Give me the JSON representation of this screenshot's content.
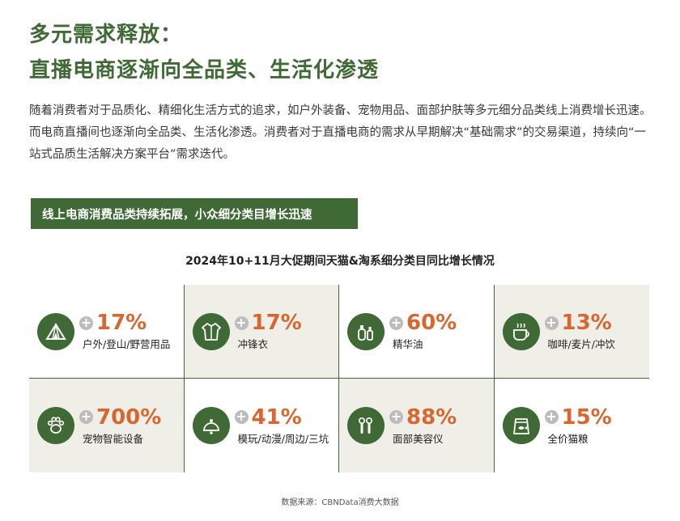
{
  "heading": {
    "line1": "多元需求释放：",
    "line2": "直播电商逐渐向全品类、生活化渗透"
  },
  "intro": "随着消费者对于品质化、精细化生活方式的追求，如户外装备、宠物用品、面部护肤等多元细分品类线上消费增长迅速。而电商直播间也逐渐向全品类、生活化渗透。消费者对于直播电商的需求从早期解决“基础需求”的交易渠道，持续向“一站式品质生活解决方案平台”需求迭代。",
  "banner": "线上电商消费品类持续拓展，小众细分类目增长迅速",
  "subtitle": "2024年10+11月大促期间天猫&淘系细分类目同比增长情况",
  "colors": {
    "green": "#3f6a35",
    "orange": "#d9662e",
    "shade": "#efefe8"
  },
  "items": [
    {
      "icon": "tent-icon",
      "plus": "+",
      "value": "17%",
      "label": "户外/登山/野营用品"
    },
    {
      "icon": "jacket-icon",
      "plus": "+",
      "value": "17%",
      "label": "冲锋衣"
    },
    {
      "icon": "serum-bottle-icon",
      "plus": "+",
      "value": "60%",
      "label": "精华油"
    },
    {
      "icon": "coffee-cup-icon",
      "plus": "+",
      "value": "13%",
      "label": "咖啡/麦片/冲饮"
    },
    {
      "icon": "paw-icon",
      "plus": "+",
      "value": "700%",
      "label": "宠物智能设备"
    },
    {
      "icon": "toy-bell-icon",
      "plus": "+",
      "value": "41%",
      "label": "模玩/动漫/周边/三坑"
    },
    {
      "icon": "beauty-device-icon",
      "plus": "+",
      "value": "88%",
      "label": "面部美容仪"
    },
    {
      "icon": "cat-food-bag-icon",
      "plus": "+",
      "value": "15%",
      "label": "全价猫粮"
    }
  ],
  "source": "数据来源：CBNData消费大数据"
}
